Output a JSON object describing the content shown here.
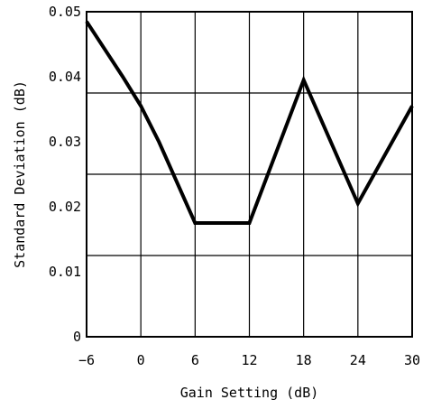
{
  "chart_data": {
    "type": "line",
    "xlabel": "Gain Setting (dB)",
    "ylabel": "Standard Deviation (dB)",
    "x_ticks": [
      "−6",
      "0",
      "6",
      "12",
      "18",
      "24",
      "30"
    ],
    "y_ticks": [
      "0",
      "0.01",
      "0.02",
      "0.03",
      "0.04",
      "0.05"
    ],
    "xlim": [
      -6,
      30
    ],
    "ylim": [
      0,
      0.05
    ],
    "grid": true,
    "series": [
      {
        "x": [
          -6,
          -2,
          0,
          2,
          6,
          12,
          18,
          24,
          30
        ],
        "y": [
          0.0485,
          0.04,
          0.0355,
          0.03,
          0.0175,
          0.0175,
          0.0395,
          0.0205,
          0.0355
        ]
      }
    ],
    "colors": {
      "line": "#000000",
      "grid": "#000000",
      "background": "#ffffff"
    }
  }
}
